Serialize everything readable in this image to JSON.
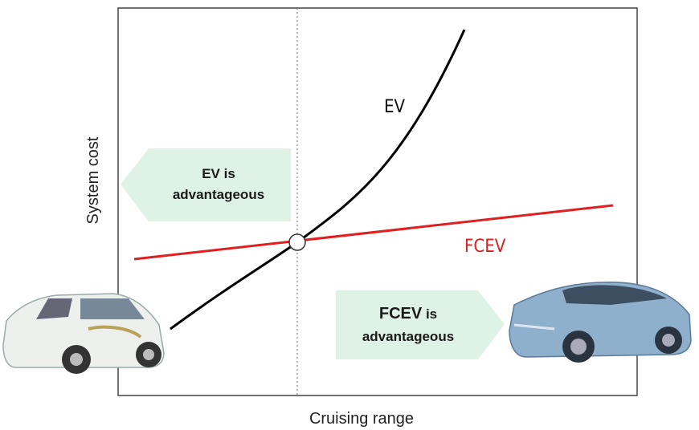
{
  "axes": {
    "x_label": "Cruising range",
    "y_label": "System cost"
  },
  "curves": [
    {
      "label": "EV"
    },
    {
      "label": "FCEV"
    }
  ],
  "regions": [
    {
      "lines": [
        "EV is",
        "advantageous"
      ]
    },
    {
      "lines": [
        "FCEV",
        "is",
        "advantageous"
      ]
    }
  ]
}
